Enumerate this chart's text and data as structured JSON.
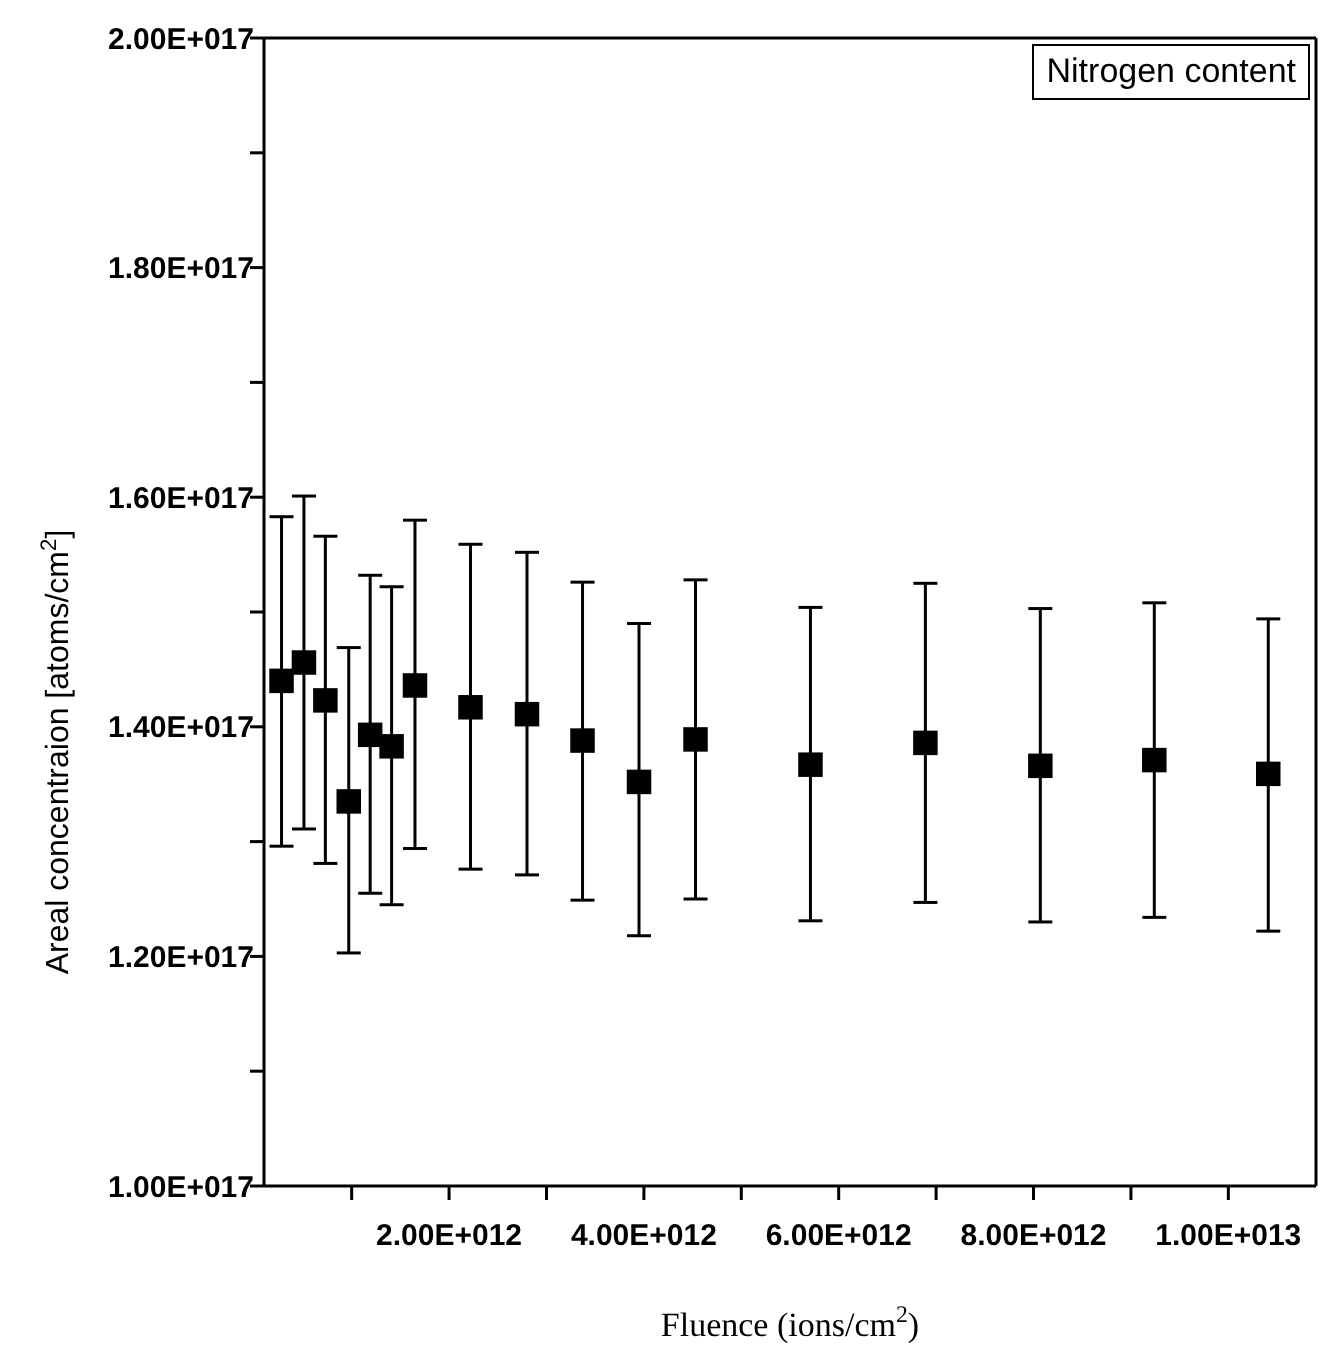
{
  "chart_data": {
    "type": "scatter",
    "xlabel": "Fluence (ions/cm$^{2}$)",
    "ylabel": "Areal concentraion [atoms/cm$^{2}$]",
    "annotations": [
      "Nitrogen content"
    ],
    "x": [
      280000000000.0,
      510000000000.0,
      730000000000.0,
      970000000000.0,
      1190000000000.0,
      1410000000000.0,
      1650000000000.0,
      2220000000000.0,
      2800000000000.0,
      3370000000000.0,
      3950000000000.0,
      4530000000000.0,
      5710000000000.0,
      6890000000000.0,
      8070000000000.0,
      9240000000000.0,
      10410000000000.0
    ],
    "series": [
      {
        "color": "#000000",
        "values": [
          1.44e+17,
          1.456e+17,
          1.423e+17,
          1.335e+17,
          1.393e+17,
          1.383e+17,
          1.436e+17,
          1.417e+17,
          1.411e+17,
          1.388e+17,
          1.352e+17,
          1.389e+17,
          1.367e+17,
          1.386e+17,
          1.366e+17,
          1.371e+17,
          1.359e+17
        ],
        "errors": [
          [
            1.296e+17,
            1.583e+17
          ],
          [
            1.311e+17,
            1.601e+17
          ],
          [
            1.281e+17,
            1.566e+17
          ],
          [
            1.203e+17,
            1.469e+17
          ],
          [
            1.255e+17,
            1.532e+17
          ],
          [
            1.245e+17,
            1.522e+17
          ],
          [
            1.294e+17,
            1.58e+17
          ],
          [
            1.276e+17,
            1.559e+17
          ],
          [
            1.271e+17,
            1.552e+17
          ],
          [
            1.249e+17,
            1.526e+17
          ],
          [
            1.218e+17,
            1.49e+17
          ],
          [
            1.25e+17,
            1.528e+17
          ],
          [
            1.231e+17,
            1.504e+17
          ],
          [
            1.247e+17,
            1.525e+17
          ],
          [
            1.23e+17,
            1.503e+17
          ],
          [
            1.234e+17,
            1.508e+17
          ],
          [
            1.222e+17,
            1.494e+17
          ]
        ]
      }
    ],
    "marker": "square",
    "xlim": [
      100000000000.0,
      10900000000000.0
    ],
    "xticks": [
      {
        "value": 1000000000000.0,
        "label": null
      },
      {
        "value": 2000000000000.0,
        "label": "2.00E+012"
      },
      {
        "value": 3000000000000.0,
        "label": null
      },
      {
        "value": 4000000000000.0,
        "label": "4.00E+012"
      },
      {
        "value": 5000000000000.0,
        "label": null
      },
      {
        "value": 6000000000000.0,
        "label": "6.00E+012"
      },
      {
        "value": 7000000000000.0,
        "label": null
      },
      {
        "value": 8000000000000.0,
        "label": "8.00E+012"
      },
      {
        "value": 9000000000000.0,
        "label": null
      },
      {
        "value": 10000000000000.0,
        "label": "1.00E+013"
      }
    ],
    "ylim": [
      1e+17,
      2e+17
    ],
    "yticks": [
      {
        "value": 1e+17,
        "label": "1.00E+017"
      },
      {
        "value": 1.1e+17,
        "label": null
      },
      {
        "value": 1.2e+17,
        "label": "1.20E+017"
      },
      {
        "value": 1.3e+17,
        "label": null
      },
      {
        "value": 1.4e+17,
        "label": "1.40E+017"
      },
      {
        "value": 1.5e+17,
        "label": null
      },
      {
        "value": 1.6e+17,
        "label": "1.60E+017"
      },
      {
        "value": 1.7e+17,
        "label": null
      },
      {
        "value": 1.8e+17,
        "label": "1.80E+017"
      },
      {
        "value": 1.9e+17,
        "label": null
      },
      {
        "value": 2e+17,
        "label": "2.00E+017"
      }
    ]
  }
}
